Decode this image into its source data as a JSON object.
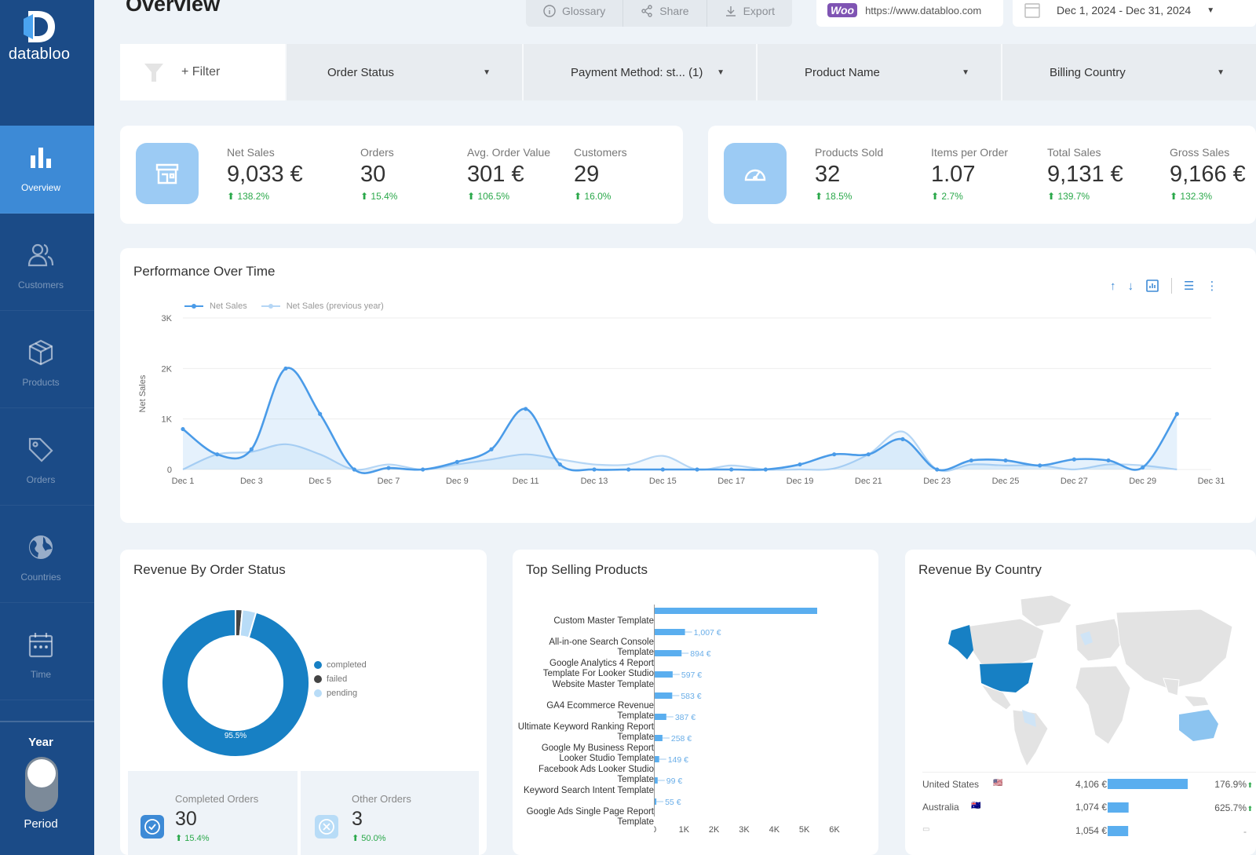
{
  "brand": {
    "logo_text": "databloo"
  },
  "sidebar": {
    "items": [
      {
        "label": "Overview",
        "icon": "bar-chart-icon",
        "active": true
      },
      {
        "label": "Customers",
        "icon": "users-icon"
      },
      {
        "label": "Products",
        "icon": "cube-icon"
      },
      {
        "label": "Orders",
        "icon": "tag-icon"
      },
      {
        "label": "Countries",
        "icon": "globe-icon"
      },
      {
        "label": "Time",
        "icon": "calendar-icon"
      }
    ],
    "toggle_top_label": "Year",
    "toggle_bottom_label": "Period"
  },
  "header": {
    "title": "Overview",
    "buttons": {
      "glossary": "Glossary",
      "share": "Share",
      "export": "Export"
    },
    "woo_badge": "Woo",
    "url": "https://www.databloo.com",
    "date_range": "Dec 1, 2024 - Dec 31, 2024"
  },
  "filters": {
    "add_filter": "+ Filter",
    "items": [
      "Order Status",
      "Payment Method: st... (1)",
      "Product Name",
      "Billing Country"
    ]
  },
  "kpis_left": [
    {
      "label": "Net Sales",
      "value": "9,033 €",
      "delta": "138.2%"
    },
    {
      "label": "Orders",
      "value": "30",
      "delta": "15.4%"
    },
    {
      "label": "Avg. Order Value",
      "value": "301 €",
      "delta": "106.5%"
    },
    {
      "label": "Customers",
      "value": "29",
      "delta": "16.0%"
    }
  ],
  "kpis_right": [
    {
      "label": "Products Sold",
      "value": "32",
      "delta": "18.5%"
    },
    {
      "label": "Items per Order",
      "value": "1.07",
      "delta": "2.7%"
    },
    {
      "label": "Total Sales",
      "value": "9,131 €",
      "delta": "139.7%"
    },
    {
      "label": "Gross Sales",
      "value": "9,166 €",
      "delta": "132.3%"
    }
  ],
  "performance": {
    "title": "Performance Over Time",
    "chart_data": {
      "type": "line",
      "ylabel": "Net Sales",
      "xlabel": "",
      "ylim": [
        0,
        3000
      ],
      "y_ticks": [
        "0",
        "1K",
        "2K",
        "3K"
      ],
      "x_ticks": [
        "Dec 1",
        "Dec 3",
        "Dec 5",
        "Dec 7",
        "Dec 9",
        "Dec 11",
        "Dec 13",
        "Dec 15",
        "Dec 17",
        "Dec 19",
        "Dec 21",
        "Dec 23",
        "Dec 25",
        "Dec 27",
        "Dec 29",
        "Dec 31"
      ],
      "x": [
        1,
        2,
        3,
        4,
        5,
        6,
        7,
        8,
        9,
        10,
        11,
        12,
        13,
        14,
        15,
        16,
        17,
        18,
        19,
        20,
        21,
        22,
        23,
        24,
        25,
        26,
        27,
        28,
        29,
        30
      ],
      "series": [
        {
          "name": "Net Sales",
          "color": "#4a9be8",
          "values": [
            800,
            300,
            400,
            2000,
            1100,
            0,
            30,
            0,
            150,
            400,
            1200,
            100,
            0,
            0,
            0,
            0,
            0,
            0,
            100,
            300,
            300,
            600,
            0,
            180,
            180,
            80,
            200,
            180,
            40,
            1100
          ]
        },
        {
          "name": "Net Sales (previous year)",
          "color": "#b5d6f5",
          "values": [
            0,
            300,
            350,
            500,
            300,
            0,
            100,
            0,
            100,
            200,
            300,
            200,
            100,
            100,
            270,
            0,
            80,
            0,
            0,
            20,
            300,
            750,
            0,
            100,
            80,
            80,
            0,
            100,
            80,
            0
          ]
        }
      ]
    }
  },
  "order_status": {
    "title": "Revenue By Order Status",
    "chart_data": {
      "type": "pie",
      "categories": [
        "completed",
        "failed",
        "pending"
      ],
      "values": [
        95.5,
        1.5,
        3.0
      ],
      "colors": [
        "#1780c4",
        "#444444",
        "#b8dcf7"
      ],
      "data_labels": [
        "95.5%"
      ]
    },
    "completed": {
      "label": "Completed Orders",
      "value": "30",
      "delta": "15.4%"
    },
    "other": {
      "label": "Other Orders",
      "value": "3",
      "delta": "50.0%"
    }
  },
  "top_products": {
    "title": "Top Selling Products",
    "chart_data": {
      "type": "bar",
      "orientation": "horizontal",
      "categories": [
        "Custom Master Template",
        "All-in-one Search Console Template",
        "Google Analytics 4 Report Template For Looker Studio",
        "Website Master Template",
        "GA4 Ecommerce Revenue Template",
        "Ultimate Keyword Ranking Report Template",
        "Google My Business Report Looker Studio Template",
        "Facebook Ads Looker Studio Template",
        "Keyword Search Intent Template",
        "Google Ads Single Page Report Template"
      ],
      "values": [
        5400,
        1007,
        894,
        597,
        583,
        387,
        258,
        149,
        99,
        55
      ],
      "data_labels": [
        "",
        "1,007 €",
        "894 €",
        "597 €",
        "583 €",
        "387 €",
        "258 €",
        "149 €",
        "99 €",
        "55 €"
      ],
      "xlim": [
        0,
        6000
      ],
      "x_ticks": [
        "0",
        "1K",
        "2K",
        "3K",
        "4K",
        "5K",
        "6K"
      ],
      "color": "#5aaeef"
    }
  },
  "countries": {
    "title": "Revenue By Country",
    "rows": [
      {
        "name": "United States",
        "value": "4,106 €",
        "amount": 4106,
        "delta": "176.9%"
      },
      {
        "name": "Australia",
        "value": "1,074 €",
        "amount": 1074,
        "delta": "625.7%"
      },
      {
        "name": "",
        "value": "1,054 €",
        "amount": 1054,
        "delta": "-"
      }
    ]
  }
}
